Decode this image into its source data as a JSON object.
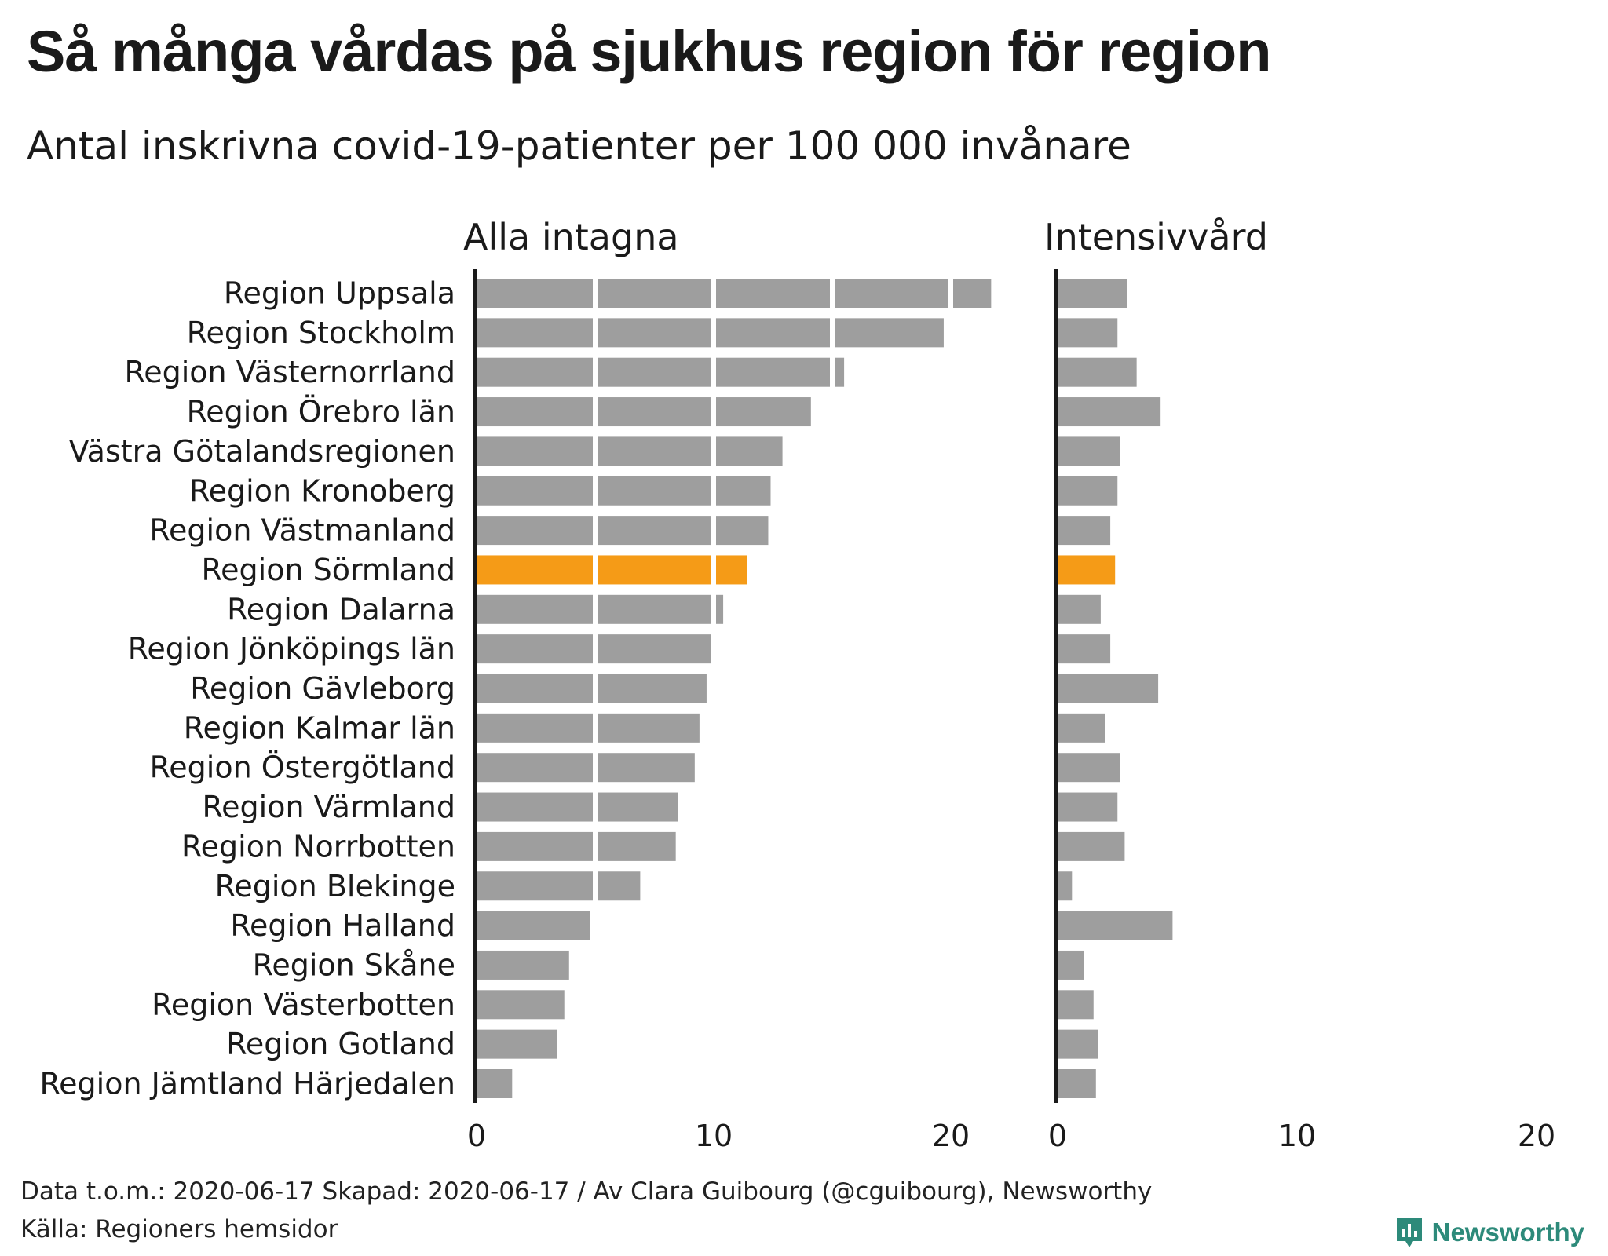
{
  "title": "Så många vårdas på sjukhus region för region",
  "subtitle": "Antal inskrivna covid-19-patienter per 100 000 invånare",
  "footer": {
    "line1": "Data t.o.m.: 2020-06-17 Skapad: 2020-06-17 / Av Clara Guibourg (@cguibourg), Newsworthy",
    "line2": "Källa: Regioners hemsidor"
  },
  "brand": {
    "name": "Newsworthy",
    "icon": "newsworthy-logo-icon",
    "color": "#2d8a7a"
  },
  "colors": {
    "bar": "#9e9e9e",
    "highlight": "#f59b17",
    "axis": "#1a1a1a"
  },
  "chart_data": {
    "type": "bar",
    "orientation": "horizontal",
    "highlight": "Region Sörmland",
    "categories": [
      "Region Uppsala",
      "Region Stockholm",
      "Region Västernorrland",
      "Region Örebro län",
      "Västra Götalandsregionen",
      "Region Kronoberg",
      "Region Västmanland",
      "Region Sörmland",
      "Region Dalarna",
      "Region Jönköpings län",
      "Region Gävleborg",
      "Region Kalmar län",
      "Region Östergötland",
      "Region Värmland",
      "Region Norrbotten",
      "Region Blekinge",
      "Region Halland",
      "Region Skåne",
      "Region Västerbotten",
      "Region Gotland",
      "Region Jämtland Härjedalen"
    ],
    "panels": [
      {
        "title": "Alla intagna",
        "xlim": [
          0,
          23
        ],
        "xticks": [
          0,
          10,
          20
        ],
        "segment_size": 5,
        "values": [
          21.7,
          19.7,
          15.5,
          14.1,
          12.9,
          12.4,
          12.3,
          11.4,
          10.4,
          9.9,
          9.7,
          9.4,
          9.2,
          8.5,
          8.4,
          6.9,
          4.8,
          3.9,
          3.7,
          3.4,
          1.5
        ]
      },
      {
        "title": "Intensivvård",
        "xlim": [
          0,
          20
        ],
        "xticks": [
          0,
          10,
          20
        ],
        "segment_size": 5,
        "values": [
          2.9,
          2.5,
          3.3,
          4.3,
          2.6,
          2.5,
          2.2,
          2.4,
          1.8,
          2.2,
          4.2,
          2.0,
          2.6,
          2.5,
          2.8,
          0.6,
          4.8,
          1.1,
          1.5,
          1.7,
          1.6
        ]
      }
    ]
  }
}
